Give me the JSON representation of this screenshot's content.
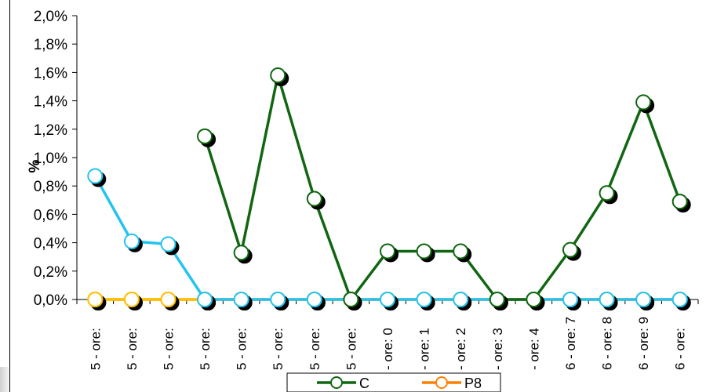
{
  "chart_data": {
    "type": "line",
    "title": "",
    "xlabel": "",
    "ylabel": "%",
    "ylim": [
      0,
      2.0
    ],
    "y_ticks": [
      "0,0%",
      "0,2%",
      "0,4%",
      "0,6%",
      "0,8%",
      "1,0%",
      "1,2%",
      "1,4%",
      "1,6%",
      "1,8%",
      "2,0%"
    ],
    "y_tick_values": [
      0,
      0.2,
      0.4,
      0.6,
      0.8,
      1.0,
      1.2,
      1.4,
      1.6,
      1.8,
      2.0
    ],
    "categories": [
      "5 - ore:",
      "5 - ore:",
      "5 - ore:",
      "5 - ore:",
      "5 - ore:",
      "5 - ore:",
      "5 - ore:",
      "5 - ore:",
      "- ore: 0",
      "- ore: 1",
      "- ore: 2",
      "- ore: 3",
      "- ore: 4",
      "6 - ore: 7",
      "6 - ore: 8",
      "6 - ore: 9",
      "6 - ore:"
    ],
    "grid": false,
    "legend_position": "bottom",
    "series": [
      {
        "name": "C",
        "color": "#116611",
        "in_legend": true,
        "values": [
          null,
          null,
          null,
          1.15,
          0.33,
          1.58,
          0.71,
          0.0,
          0.34,
          0.34,
          0.34,
          0.0,
          0.0,
          0.35,
          0.75,
          1.39,
          0.69
        ]
      },
      {
        "name": "P8",
        "color": "#ff8000",
        "in_legend": true,
        "values": [
          0,
          0,
          0,
          0,
          0,
          0,
          0,
          0,
          0,
          0,
          0,
          0,
          0,
          0,
          0,
          0,
          0
        ]
      },
      {
        "name": "",
        "color": "#ffc000",
        "in_legend": false,
        "values": [
          0,
          0,
          0,
          0,
          null,
          null,
          null,
          null,
          null,
          null,
          null,
          null,
          null,
          null,
          null,
          null,
          null
        ]
      },
      {
        "name": "",
        "color": "#22c4ee",
        "in_legend": false,
        "values": [
          0.87,
          0.41,
          0.39,
          0.0,
          0,
          0,
          0,
          0,
          0,
          0,
          0,
          0,
          0,
          0,
          0,
          0,
          0
        ]
      }
    ]
  }
}
